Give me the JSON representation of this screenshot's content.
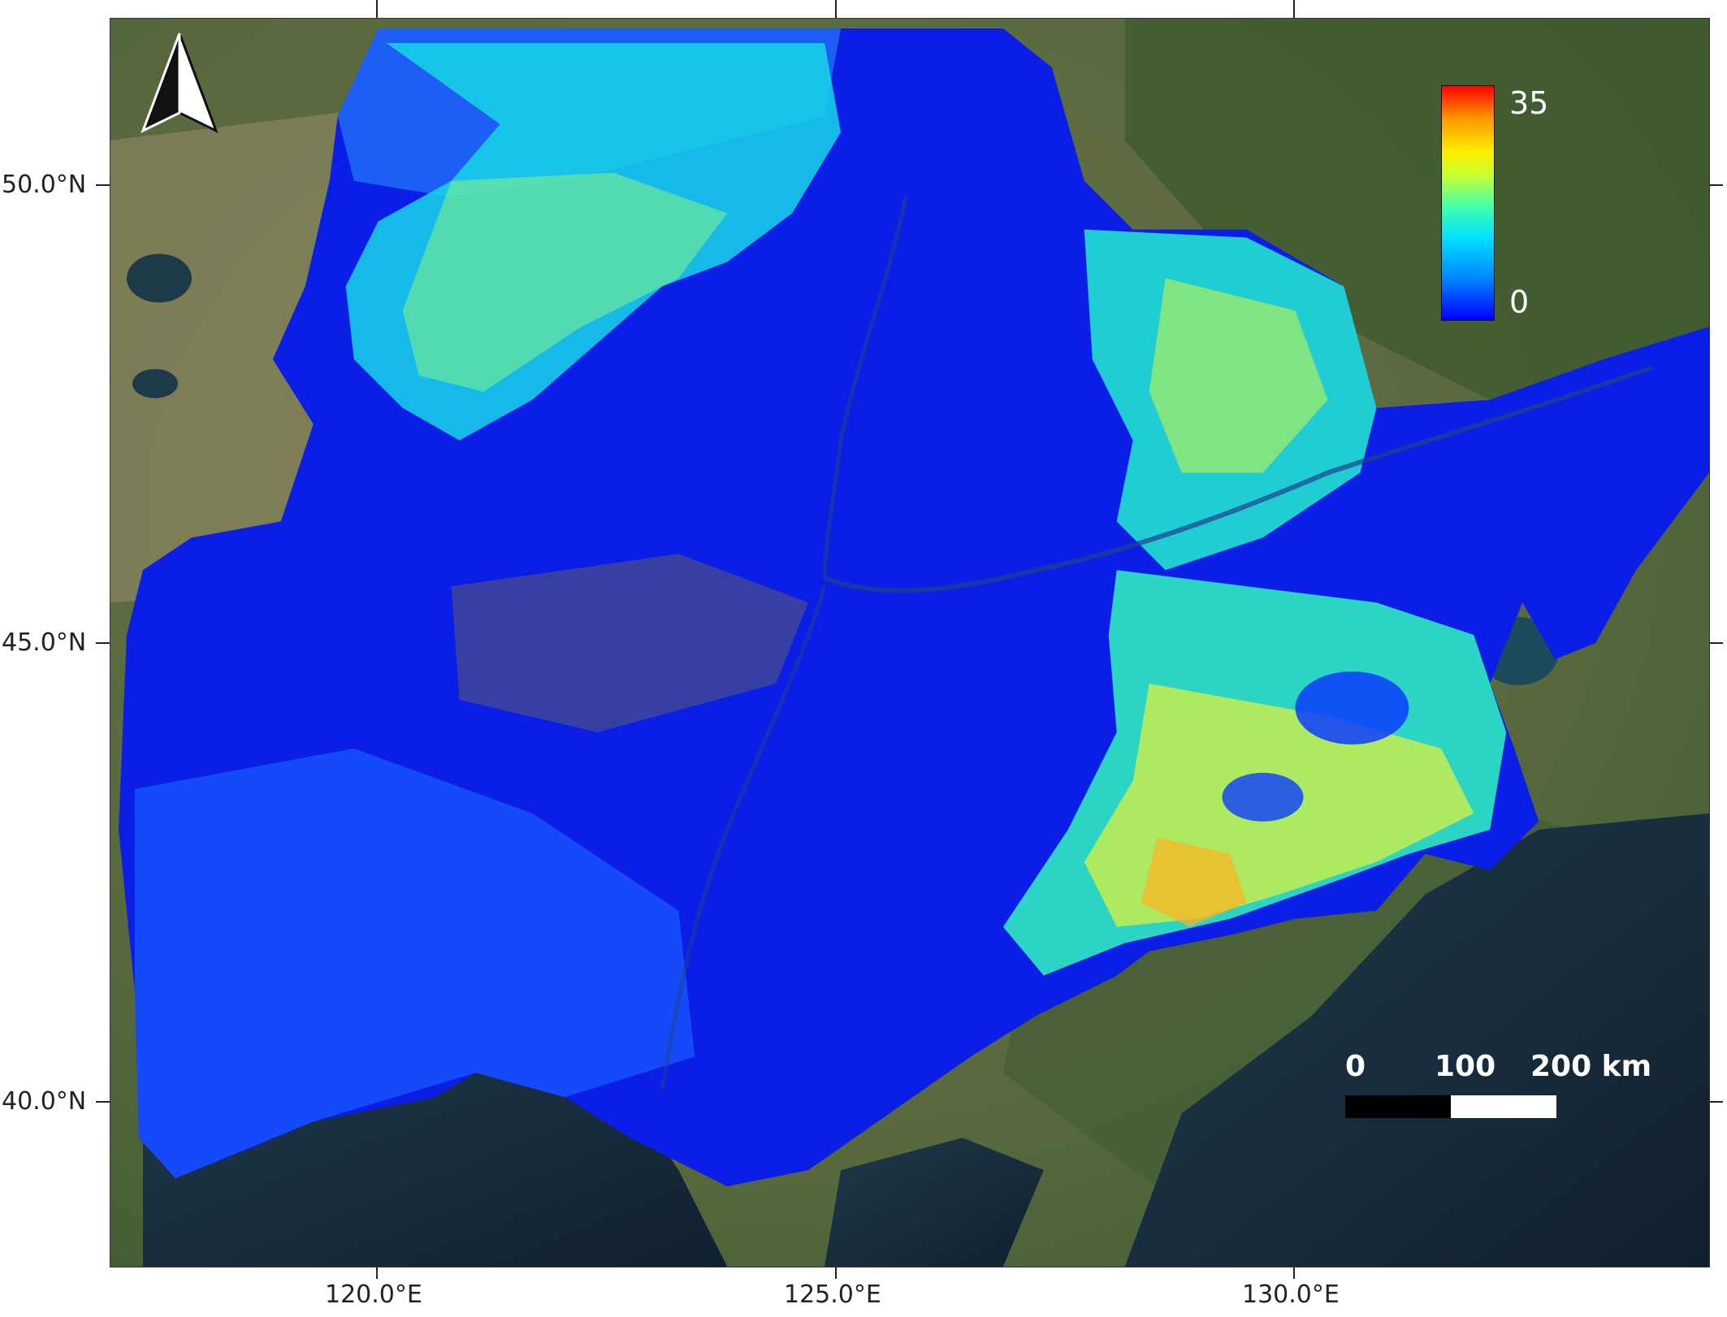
{
  "map": {
    "legend": {
      "max_label": "35",
      "min_label": "0",
      "colors": [
        "#0000ff",
        "#00e0ff",
        "#ffee00",
        "#ff0000"
      ]
    },
    "scale_bar": {
      "labels": [
        "0",
        "100",
        "200 km"
      ]
    },
    "axes": {
      "longitude_labels": [
        "120.0°E",
        "125.0°E",
        "130.0°E"
      ],
      "latitude_labels": [
        "50.0°N",
        "45.0°N",
        "40.0°N"
      ]
    },
    "north_arrow": "north-arrow-icon"
  }
}
